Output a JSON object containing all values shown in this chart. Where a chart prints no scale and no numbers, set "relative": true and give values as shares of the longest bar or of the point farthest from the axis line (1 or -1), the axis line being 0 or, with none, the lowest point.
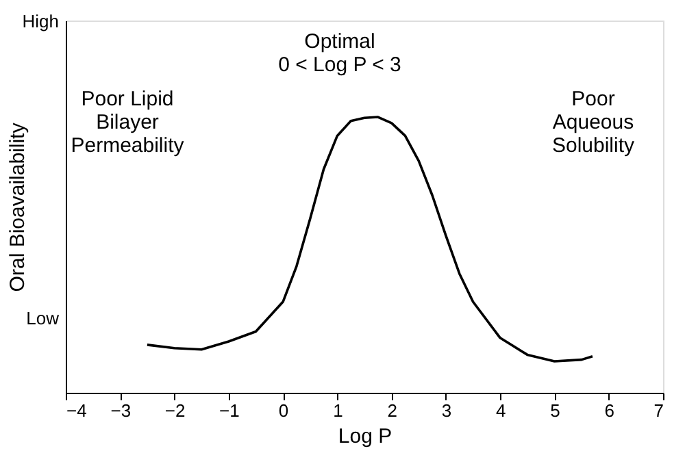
{
  "chart_data": {
    "type": "line",
    "xlabel": "Log P",
    "ylabel": "Oral Bioavailability",
    "relative": true,
    "x": [
      -2.5,
      -2,
      -1.5,
      -1,
      -0.5,
      0,
      0.25,
      0.5,
      0.75,
      1,
      1.25,
      1.5,
      1.75,
      2,
      2.25,
      2.5,
      2.75,
      3,
      3.25,
      3.5,
      4,
      4.5,
      5,
      5.5,
      5.7
    ],
    "series": [
      {
        "color": "#000000",
        "values": [
          0.174,
          0.162,
          0.157,
          0.186,
          0.222,
          0.33,
          0.459,
          0.631,
          0.811,
          0.932,
          0.986,
          0.997,
          1,
          0.978,
          0.932,
          0.841,
          0.716,
          0.57,
          0.432,
          0.33,
          0.199,
          0.138,
          0.114,
          0.12,
          0.132
        ]
      }
    ],
    "xlim": [
      -4,
      7
    ],
    "xticks": [
      -4,
      -3,
      -2,
      -1,
      0,
      1,
      2,
      3,
      4,
      5,
      6,
      7
    ],
    "annotations": [
      "High",
      "Low",
      "Poor Lipid\nBilayer\nPermeability",
      "Optimal\n0 < Log P < 3",
      "Poor\nAqueous\nSolubility"
    ],
    "line_style": "solid"
  }
}
